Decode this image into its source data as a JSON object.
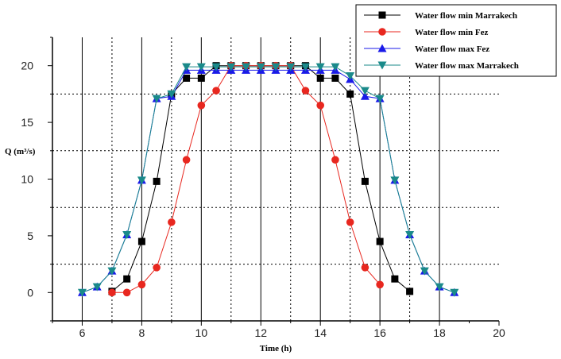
{
  "chart_data": {
    "type": "line",
    "xlabel": "Time (h)",
    "ylabel": "Q (m³/s)",
    "xlim": [
      5,
      20
    ],
    "ylim": [
      -2.5,
      22.5
    ],
    "x_ticks": [
      6,
      8,
      10,
      12,
      14,
      16,
      18,
      20
    ],
    "y_ticks": [
      0,
      5,
      10,
      15,
      20
    ],
    "x_ticks_display": [
      "6",
      "8",
      "10",
      "12",
      "14",
      "16",
      "18",
      "20"
    ],
    "y_ticks_display": [
      "0",
      "5",
      "10",
      "15",
      "20"
    ],
    "grid": {
      "vertical_solid_x": [
        6,
        8,
        10,
        12,
        14,
        16,
        18
      ],
      "vertical_dotted_x": [
        7,
        9,
        11,
        13,
        15,
        17
      ],
      "horizontal_dotted_y": [
        2.5,
        7.5,
        12.5,
        17.5
      ]
    },
    "legend_position": "top-right",
    "series": [
      {
        "name": "Water flow  min Marrakech",
        "color": "#000000",
        "marker": "square",
        "x": [
          7,
          7.5,
          8,
          8.5,
          9,
          9.5,
          10,
          10.5,
          11,
          11.5,
          12,
          12.5,
          13,
          13.5,
          14,
          14.5,
          15,
          15.5,
          16,
          16.5,
          17
        ],
        "y": [
          0.1,
          1.2,
          4.5,
          9.8,
          17.5,
          18.9,
          18.9,
          20,
          20,
          20,
          20,
          20,
          20,
          20,
          18.9,
          18.9,
          17.5,
          9.8,
          4.5,
          1.2,
          0.1
        ]
      },
      {
        "name": "Water flow min Fez",
        "color": "#e8271f",
        "marker": "circle",
        "x": [
          7,
          7.5,
          8,
          8.5,
          9,
          9.5,
          10,
          10.5,
          11,
          11.5,
          12,
          12.5,
          13,
          13.5,
          14,
          14.5,
          15,
          15.5,
          16
        ],
        "y": [
          0,
          0,
          0.7,
          2.2,
          6.2,
          11.7,
          16.5,
          17.8,
          20,
          20,
          20,
          20,
          20,
          17.8,
          16.5,
          11.7,
          6.2,
          2.2,
          0.7
        ]
      },
      {
        "name": "Water flow max Fez",
        "color": "#1a1ae8",
        "marker": "triangle-up",
        "x": [
          6,
          6.5,
          7,
          7.5,
          8,
          8.5,
          9,
          9.5,
          10,
          10.5,
          11,
          11.5,
          12,
          12.5,
          13,
          13.5,
          14,
          14.5,
          15,
          15.5,
          16,
          16.5,
          17,
          17.5,
          18,
          18.5
        ],
        "y": [
          0,
          0.5,
          1.9,
          5.1,
          9.9,
          17.1,
          17.3,
          19.6,
          19.6,
          19.6,
          19.6,
          19.6,
          19.6,
          19.6,
          19.6,
          19.6,
          19.6,
          19.6,
          18.8,
          17.3,
          17.1,
          9.9,
          5.1,
          1.9,
          0.5,
          0
        ]
      },
      {
        "name": "Water flow max Marrakech",
        "color": "#1a8a8a",
        "marker": "triangle-down",
        "x": [
          6,
          6.5,
          7,
          7.5,
          8,
          8.5,
          9,
          9.5,
          10,
          10.5,
          11,
          11.5,
          12,
          12.5,
          13,
          13.5,
          14,
          14.5,
          15,
          15.5,
          16,
          16.5,
          17,
          17.5,
          18,
          18.5
        ],
        "y": [
          0,
          0.5,
          1.9,
          5.1,
          9.9,
          17.1,
          17.5,
          19.9,
          19.9,
          19.9,
          19.9,
          19.9,
          19.9,
          19.9,
          19.9,
          19.9,
          19.9,
          19.9,
          19.1,
          17.8,
          17.1,
          9.9,
          5.1,
          1.9,
          0.5,
          0
        ]
      }
    ]
  }
}
